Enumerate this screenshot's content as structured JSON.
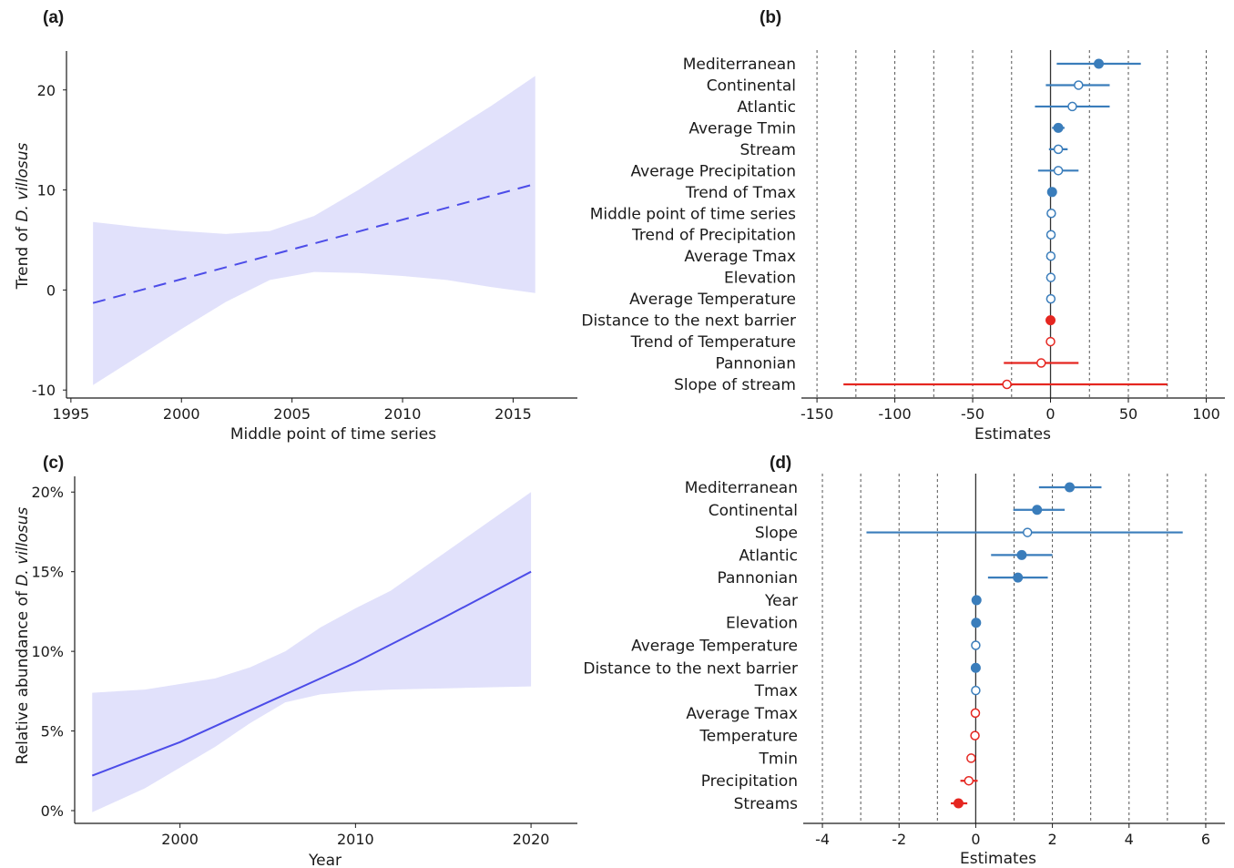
{
  "colors": {
    "ribbon": "#e1e1fb",
    "trend_line": "#4c4ce8",
    "blue": "#3a7dbb",
    "red": "#e52620",
    "axis": "#1a1a1a",
    "grid": "#555555"
  },
  "panels": {
    "a": "(a)",
    "b": "(b)",
    "c": "(c)",
    "d": "(d)"
  },
  "chart_data": [
    {
      "panel": "a",
      "type": "line",
      "xlabel": "Middle point of time series",
      "ylabel_parts": [
        "Trend of ",
        "D. villosus"
      ],
      "xlim": [
        1994.8,
        2017
      ],
      "ylim": [
        -10.8,
        22.8
      ],
      "xticks": [
        1995,
        2000,
        2005,
        2010,
        2015
      ],
      "yticks": [
        -10,
        0,
        10,
        20
      ],
      "line_style": "dashed",
      "x": [
        1996,
        2016
      ],
      "y": [
        -1.3,
        10.6
      ],
      "ribbon": {
        "x": [
          1996,
          1998,
          2000,
          2002,
          2004,
          2006,
          2008,
          2010,
          2012,
          2014,
          2016
        ],
        "upper": [
          6.8,
          6.3,
          5.9,
          5.6,
          5.9,
          7.4,
          10.0,
          12.8,
          15.6,
          18.4,
          21.4
        ],
        "lower": [
          -9.5,
          -6.7,
          -3.9,
          -1.2,
          1.0,
          1.8,
          1.7,
          1.4,
          1.0,
          0.3,
          -0.3
        ]
      }
    },
    {
      "panel": "b",
      "type": "scatter",
      "xlabel": "Estimates",
      "xlim": [
        -160,
        112
      ],
      "xticks": [
        -150,
        -100,
        -50,
        0,
        50,
        100
      ],
      "xtick_labels": [
        "-150",
        "-100",
        "-50",
        "0",
        "50",
        "100"
      ],
      "gridlines": [
        -150,
        -125,
        -100,
        -75,
        -50,
        -25,
        25,
        50,
        75,
        100
      ],
      "categories": [
        "Mediterranean",
        "Continental",
        "Atlantic",
        "Average Tmin",
        "Stream",
        "Average Precipitation",
        "Trend of Tmax",
        "Middle point of time series",
        "Trend of Precipitation",
        "Average Tmax",
        "Elevation",
        "Average Temperature",
        "Distance to the next barrier",
        "Trend of Temperature",
        "Pannonian",
        "Slope of stream"
      ],
      "estimates": [
        31,
        18,
        14,
        5,
        5,
        5,
        1,
        0.5,
        0.3,
        0.2,
        0.2,
        0.2,
        0,
        0,
        -6,
        -28
      ],
      "lower": [
        4,
        -3,
        -10,
        1,
        -1,
        -8,
        0,
        0,
        0,
        0,
        0,
        0,
        0,
        0,
        -30,
        -133
      ],
      "upper": [
        58,
        38,
        38,
        9,
        11,
        18,
        2,
        1,
        1,
        1,
        1,
        1,
        0,
        0,
        18,
        75
      ],
      "significant": [
        true,
        false,
        false,
        true,
        false,
        false,
        true,
        false,
        false,
        false,
        false,
        false,
        true,
        false,
        false,
        false
      ],
      "direction": [
        "pos",
        "pos",
        "pos",
        "pos",
        "pos",
        "pos",
        "pos",
        "pos",
        "pos",
        "pos",
        "pos",
        "pos",
        "neg",
        "neg",
        "neg",
        "neg"
      ]
    },
    {
      "panel": "c",
      "type": "line",
      "xlabel": "Year",
      "ylabel_parts": [
        "Relative abundance of ",
        "D. villosus"
      ],
      "xlim": [
        1994,
        2021.5
      ],
      "ylim": [
        -0.008,
        0.203
      ],
      "xticks": [
        2000,
        2010,
        2020
      ],
      "yticks": [
        0,
        0.05,
        0.1,
        0.15,
        0.2
      ],
      "ytick_labels": [
        "0%",
        "5%",
        "10%",
        "15%",
        "20%"
      ],
      "line_style": "solid",
      "x": [
        1995,
        2000,
        2005,
        2010,
        2015,
        2020
      ],
      "y": [
        0.022,
        0.043,
        0.068,
        0.093,
        0.121,
        0.15
      ],
      "ribbon": {
        "x": [
          1995,
          1998,
          2002,
          2004,
          2006,
          2008,
          2010,
          2012,
          2016,
          2020
        ],
        "upper": [
          0.074,
          0.076,
          0.083,
          0.09,
          0.1,
          0.115,
          0.127,
          0.138,
          0.169,
          0.2
        ],
        "lower": [
          -0.001,
          0.014,
          0.04,
          0.055,
          0.068,
          0.073,
          0.075,
          0.076,
          0.077,
          0.078
        ]
      }
    },
    {
      "panel": "d",
      "type": "scatter",
      "xlabel": "Estimates",
      "xlim": [
        -4.5,
        6.5
      ],
      "xticks": [
        -4,
        -2,
        0,
        2,
        4,
        6
      ],
      "xtick_labels": [
        "-4",
        "-2",
        "0",
        "2",
        "4",
        "6"
      ],
      "gridlines": [
        -4,
        -3,
        -2,
        -1,
        1,
        2,
        3,
        4,
        5,
        6
      ],
      "categories": [
        "Mediterranean",
        "Continental",
        "Slope",
        "Atlantic",
        "Pannonian",
        "Year",
        "Elevation",
        "Average Temperature",
        "Distance to the next barrier",
        "Tmax",
        "Average Tmax",
        "Temperature",
        "Tmin",
        "Precipitation",
        "Streams"
      ],
      "estimates": [
        2.45,
        1.6,
        1.35,
        1.2,
        1.1,
        0.02,
        0.01,
        0.0,
        0.0,
        0.0,
        -0.01,
        -0.02,
        -0.12,
        -0.18,
        -0.45
      ],
      "lower": [
        1.65,
        0.98,
        -2.85,
        0.4,
        0.32,
        0.0,
        0.0,
        0.0,
        0.0,
        0.0,
        -0.01,
        -0.02,
        -0.15,
        -0.4,
        -0.65
      ],
      "upper": [
        3.28,
        2.32,
        5.4,
        2.0,
        1.88,
        0.04,
        0.02,
        0.0,
        0.0,
        0.0,
        -0.01,
        -0.02,
        -0.08,
        0.05,
        -0.22
      ],
      "significant": [
        true,
        true,
        false,
        true,
        true,
        true,
        true,
        false,
        true,
        false,
        false,
        false,
        false,
        false,
        true
      ],
      "direction": [
        "pos",
        "pos",
        "pos",
        "pos",
        "pos",
        "pos",
        "pos",
        "pos",
        "pos",
        "pos",
        "neg",
        "neg",
        "neg",
        "neg",
        "neg"
      ]
    }
  ]
}
